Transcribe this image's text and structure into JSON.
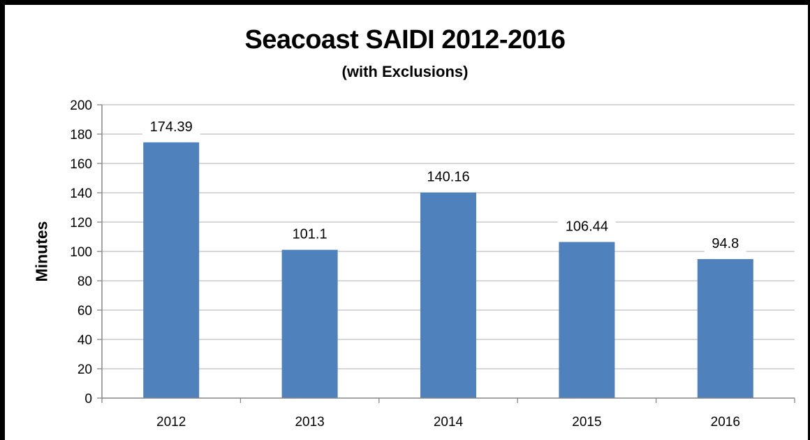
{
  "chart_data": {
    "type": "bar",
    "title": "Seacoast SAIDI 2012-2016",
    "subtitle": "(with Exclusions)",
    "xlabel": "",
    "ylabel": "Minutes",
    "categories": [
      "2012",
      "2013",
      "2014",
      "2015",
      "2016"
    ],
    "values": [
      174.39,
      101.1,
      140.16,
      106.44,
      94.8
    ],
    "data_labels": [
      "174.39",
      "101.1",
      "140.16",
      "106.44",
      "94.8"
    ],
    "ylim": [
      0,
      200
    ],
    "yticks": [
      "0",
      "20",
      "40",
      "60",
      "80",
      "100",
      "120",
      "140",
      "160",
      "180",
      "200"
    ],
    "grid": true,
    "legend": "none",
    "bar_color": "#4F81BD",
    "grid_color": "#BFBFBF"
  }
}
